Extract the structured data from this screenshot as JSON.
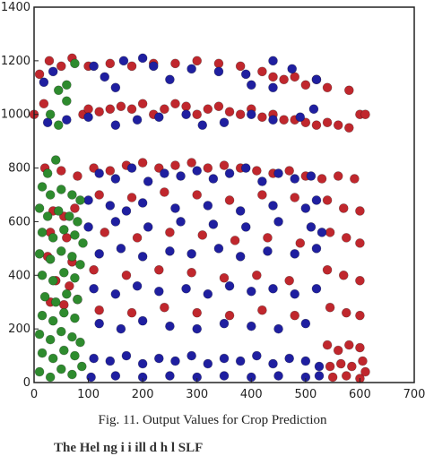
{
  "caption": "Fig. 11. Output Values for Crop Prediction",
  "cutoff_text": "The Hel       ng       i  i ill      d   h   l  SLF",
  "colors": {
    "red": "#c0272d",
    "blue": "#1f1fa0",
    "green": "#2e8b2e"
  },
  "chart_data": {
    "type": "scatter",
    "title": "",
    "xlabel": "",
    "ylabel": "",
    "xlim": [
      0,
      700
    ],
    "ylim": [
      0,
      1400
    ],
    "xticks": [
      0,
      100,
      200,
      300,
      400,
      500,
      600,
      700
    ],
    "yticks": [
      0,
      200,
      400,
      600,
      800,
      1000,
      1200,
      1400
    ],
    "xtick_labels": [
      "0",
      "100",
      "200",
      "300",
      "400",
      "500",
      "600",
      "700"
    ],
    "ytick_labels": [
      "0",
      "200",
      "400",
      "600",
      "800",
      "1000",
      "1200",
      "1400"
    ],
    "grid": false,
    "series": [
      {
        "color": "#c0272d",
        "points": [
          [
            0,
            1000
          ],
          [
            10,
            1150
          ],
          [
            18,
            1040
          ],
          [
            28,
            1200
          ],
          [
            50,
            1180
          ],
          [
            70,
            1210
          ],
          [
            90,
            1000
          ],
          [
            100,
            1020
          ],
          [
            120,
            1010
          ],
          [
            140,
            1020
          ],
          [
            160,
            1030
          ],
          [
            180,
            1020
          ],
          [
            200,
            1040
          ],
          [
            220,
            1000
          ],
          [
            240,
            1020
          ],
          [
            260,
            1040
          ],
          [
            280,
            1030
          ],
          [
            300,
            1000
          ],
          [
            320,
            1020
          ],
          [
            340,
            1030
          ],
          [
            360,
            1010
          ],
          [
            380,
            1000
          ],
          [
            400,
            1020
          ],
          [
            420,
            990
          ],
          [
            440,
            1000
          ],
          [
            460,
            980
          ],
          [
            480,
            980
          ],
          [
            500,
            970
          ],
          [
            520,
            960
          ],
          [
            540,
            970
          ],
          [
            560,
            960
          ],
          [
            580,
            950
          ],
          [
            600,
            1000
          ],
          [
            100,
            1180
          ],
          [
            140,
            1190
          ],
          [
            180,
            1180
          ],
          [
            220,
            1190
          ],
          [
            260,
            1190
          ],
          [
            300,
            1200
          ],
          [
            340,
            1190
          ],
          [
            380,
            1180
          ],
          [
            420,
            1160
          ],
          [
            460,
            1130
          ],
          [
            500,
            1110
          ],
          [
            540,
            1100
          ],
          [
            580,
            1090
          ],
          [
            610,
            1000
          ],
          [
            440,
            1140
          ],
          [
            480,
            1140
          ],
          [
            520,
            1130
          ],
          [
            20,
            800
          ],
          [
            50,
            790
          ],
          [
            80,
            770
          ],
          [
            110,
            800
          ],
          [
            140,
            790
          ],
          [
            170,
            810
          ],
          [
            200,
            820
          ],
          [
            230,
            800
          ],
          [
            260,
            810
          ],
          [
            290,
            820
          ],
          [
            320,
            800
          ],
          [
            350,
            810
          ],
          [
            380,
            800
          ],
          [
            410,
            790
          ],
          [
            440,
            780
          ],
          [
            470,
            790
          ],
          [
            500,
            770
          ],
          [
            530,
            760
          ],
          [
            560,
            770
          ],
          [
            590,
            760
          ],
          [
            120,
            700
          ],
          [
            180,
            690
          ],
          [
            240,
            710
          ],
          [
            300,
            700
          ],
          [
            360,
            680
          ],
          [
            420,
            700
          ],
          [
            480,
            690
          ],
          [
            540,
            680
          ],
          [
            570,
            650
          ],
          [
            600,
            640
          ],
          [
            130,
            560
          ],
          [
            190,
            540
          ],
          [
            250,
            560
          ],
          [
            310,
            550
          ],
          [
            370,
            530
          ],
          [
            430,
            540
          ],
          [
            490,
            520
          ],
          [
            545,
            560
          ],
          [
            575,
            540
          ],
          [
            600,
            520
          ],
          [
            110,
            420
          ],
          [
            170,
            400
          ],
          [
            230,
            420
          ],
          [
            290,
            410
          ],
          [
            350,
            390
          ],
          [
            410,
            400
          ],
          [
            470,
            380
          ],
          [
            540,
            420
          ],
          [
            570,
            400
          ],
          [
            600,
            380
          ],
          [
            120,
            270
          ],
          [
            180,
            260
          ],
          [
            240,
            280
          ],
          [
            300,
            260
          ],
          [
            360,
            250
          ],
          [
            420,
            270
          ],
          [
            480,
            250
          ],
          [
            545,
            280
          ],
          [
            575,
            260
          ],
          [
            600,
            250
          ],
          [
            540,
            140
          ],
          [
            560,
            120
          ],
          [
            580,
            140
          ],
          [
            600,
            130
          ],
          [
            545,
            60
          ],
          [
            565,
            70
          ],
          [
            585,
            60
          ],
          [
            605,
            80
          ],
          [
            550,
            20
          ],
          [
            575,
            25
          ],
          [
            600,
            15
          ],
          [
            610,
            40
          ],
          [
            35,
            640
          ],
          [
            55,
            620
          ],
          [
            75,
            650
          ],
          [
            30,
            560
          ],
          [
            60,
            540
          ],
          [
            25,
            470
          ],
          [
            70,
            450
          ],
          [
            40,
            380
          ],
          [
            65,
            360
          ],
          [
            30,
            300
          ],
          [
            55,
            290
          ],
          [
            80,
            310
          ]
        ]
      },
      {
        "color": "#1f1fa0",
        "points": [
          [
            18,
            1120
          ],
          [
            35,
            1160
          ],
          [
            110,
            1180
          ],
          [
            130,
            1140
          ],
          [
            150,
            1100
          ],
          [
            165,
            1200
          ],
          [
            200,
            1210
          ],
          [
            220,
            1180
          ],
          [
            250,
            1130
          ],
          [
            290,
            1170
          ],
          [
            340,
            1160
          ],
          [
            390,
            1150
          ],
          [
            440,
            1200
          ],
          [
            475,
            1170
          ],
          [
            520,
            1130
          ],
          [
            25,
            970
          ],
          [
            60,
            980
          ],
          [
            100,
            990
          ],
          [
            150,
            960
          ],
          [
            190,
            980
          ],
          [
            230,
            990
          ],
          [
            280,
            1000
          ],
          [
            310,
            960
          ],
          [
            350,
            970
          ],
          [
            400,
            1000
          ],
          [
            440,
            980
          ],
          [
            490,
            990
          ],
          [
            515,
            1020
          ],
          [
            440,
            1100
          ],
          [
            400,
            1110
          ],
          [
            120,
            780
          ],
          [
            150,
            760
          ],
          [
            180,
            800
          ],
          [
            210,
            750
          ],
          [
            240,
            780
          ],
          [
            270,
            770
          ],
          [
            300,
            790
          ],
          [
            330,
            760
          ],
          [
            360,
            780
          ],
          [
            390,
            800
          ],
          [
            420,
            750
          ],
          [
            450,
            780
          ],
          [
            480,
            760
          ],
          [
            510,
            770
          ],
          [
            100,
            680
          ],
          [
            140,
            660
          ],
          [
            170,
            640
          ],
          [
            200,
            670
          ],
          [
            260,
            650
          ],
          [
            320,
            660
          ],
          [
            380,
            640
          ],
          [
            440,
            660
          ],
          [
            500,
            650
          ],
          [
            520,
            680
          ],
          [
            100,
            580
          ],
          [
            150,
            600
          ],
          [
            210,
            580
          ],
          [
            270,
            600
          ],
          [
            330,
            590
          ],
          [
            390,
            580
          ],
          [
            450,
            600
          ],
          [
            510,
            580
          ],
          [
            530,
            560
          ],
          [
            120,
            480
          ],
          [
            160,
            500
          ],
          [
            200,
            470
          ],
          [
            250,
            490
          ],
          [
            290,
            480
          ],
          [
            340,
            500
          ],
          [
            380,
            470
          ],
          [
            430,
            490
          ],
          [
            480,
            480
          ],
          [
            520,
            500
          ],
          [
            110,
            350
          ],
          [
            150,
            330
          ],
          [
            190,
            360
          ],
          [
            230,
            340
          ],
          [
            280,
            350
          ],
          [
            320,
            330
          ],
          [
            360,
            360
          ],
          [
            400,
            340
          ],
          [
            440,
            350
          ],
          [
            480,
            330
          ],
          [
            520,
            350
          ],
          [
            120,
            220
          ],
          [
            160,
            200
          ],
          [
            200,
            230
          ],
          [
            250,
            210
          ],
          [
            300,
            200
          ],
          [
            350,
            220
          ],
          [
            400,
            210
          ],
          [
            450,
            200
          ],
          [
            500,
            220
          ],
          [
            110,
            90
          ],
          [
            140,
            80
          ],
          [
            170,
            100
          ],
          [
            200,
            70
          ],
          [
            230,
            90
          ],
          [
            260,
            80
          ],
          [
            290,
            100
          ],
          [
            320,
            70
          ],
          [
            350,
            90
          ],
          [
            380,
            80
          ],
          [
            410,
            100
          ],
          [
            440,
            70
          ],
          [
            470,
            90
          ],
          [
            500,
            80
          ],
          [
            525,
            60
          ],
          [
            105,
            20
          ],
          [
            150,
            25
          ],
          [
            200,
            20
          ],
          [
            250,
            25
          ],
          [
            300,
            20
          ],
          [
            350,
            25
          ],
          [
            400,
            20
          ],
          [
            450,
            25
          ],
          [
            500,
            20
          ],
          [
            525,
            25
          ]
        ]
      },
      {
        "color": "#2e8b2e",
        "points": [
          [
            45,
            1090
          ],
          [
            60,
            1110
          ],
          [
            75,
            1190
          ],
          [
            30,
            1000
          ],
          [
            45,
            960
          ],
          [
            60,
            1050
          ],
          [
            40,
            830
          ],
          [
            25,
            780
          ],
          [
            15,
            730
          ],
          [
            30,
            700
          ],
          [
            50,
            720
          ],
          [
            70,
            700
          ],
          [
            85,
            680
          ],
          [
            10,
            650
          ],
          [
            25,
            620
          ],
          [
            45,
            640
          ],
          [
            65,
            620
          ],
          [
            80,
            600
          ],
          [
            15,
            560
          ],
          [
            35,
            540
          ],
          [
            55,
            570
          ],
          [
            75,
            550
          ],
          [
            90,
            520
          ],
          [
            10,
            480
          ],
          [
            30,
            460
          ],
          [
            50,
            490
          ],
          [
            70,
            470
          ],
          [
            85,
            440
          ],
          [
            15,
            400
          ],
          [
            35,
            380
          ],
          [
            55,
            410
          ],
          [
            75,
            390
          ],
          [
            20,
            320
          ],
          [
            40,
            300
          ],
          [
            60,
            330
          ],
          [
            80,
            310
          ],
          [
            15,
            250
          ],
          [
            35,
            230
          ],
          [
            55,
            260
          ],
          [
            75,
            240
          ],
          [
            10,
            180
          ],
          [
            30,
            160
          ],
          [
            50,
            190
          ],
          [
            70,
            170
          ],
          [
            85,
            150
          ],
          [
            15,
            110
          ],
          [
            35,
            90
          ],
          [
            55,
            120
          ],
          [
            75,
            100
          ],
          [
            10,
            40
          ],
          [
            30,
            20
          ],
          [
            50,
            50
          ],
          [
            70,
            30
          ],
          [
            88,
            60
          ]
        ]
      }
    ]
  }
}
